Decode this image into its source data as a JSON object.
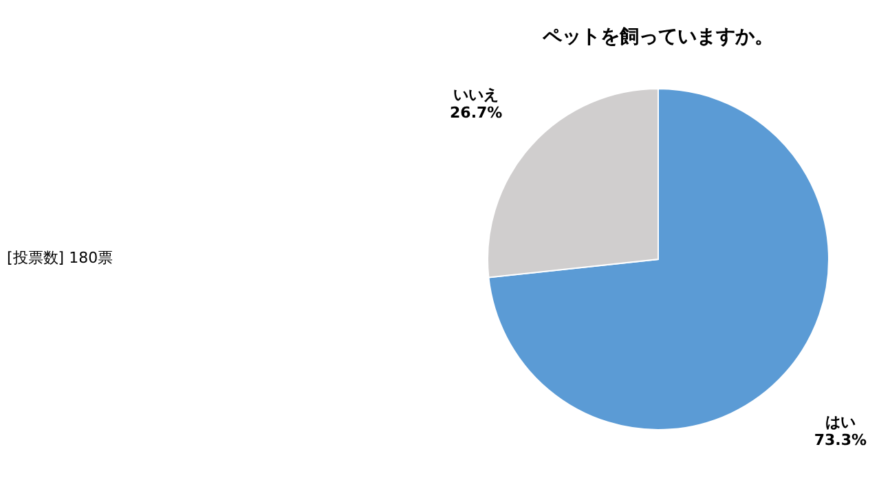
{
  "chart_data": {
    "type": "pie",
    "title": "ペットを飼っていますか。",
    "categories": [
      "はい",
      "いいえ"
    ],
    "values": [
      73.3,
      26.7
    ],
    "colors": [
      "#5b9bd5",
      "#d0cece"
    ],
    "value_labels": [
      "73.3%",
      "26.7%"
    ],
    "legend": false,
    "annotations": [
      "[投票数] 180票"
    ]
  }
}
